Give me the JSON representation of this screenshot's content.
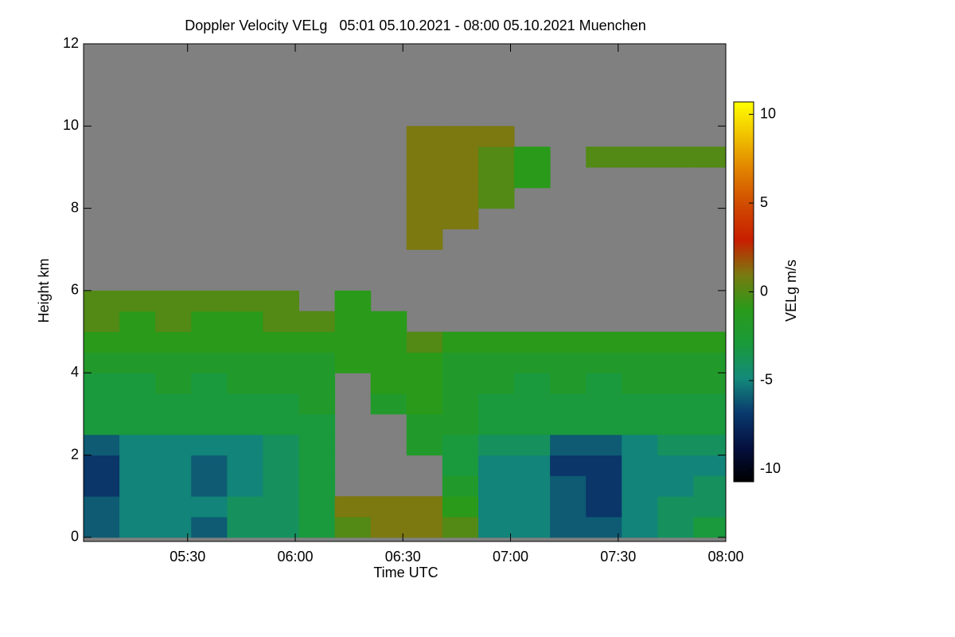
{
  "chart_data": {
    "type": "heatmap",
    "title": "Doppler Velocity VELg   05:01 05.10.2021 - 08:00 05.10.2021 Muenchen",
    "x_label": "Time UTC",
    "y_label": "Height km",
    "colorbar_label": "VELg m/s",
    "xlim": [
      301,
      480
    ],
    "xticks": [
      {
        "value": 330,
        "label": "05:30"
      },
      {
        "value": 360,
        "label": "06:00"
      },
      {
        "value": 390,
        "label": "06:30"
      },
      {
        "value": 420,
        "label": "07:00"
      },
      {
        "value": 450,
        "label": "07:30"
      },
      {
        "value": 480,
        "label": "08:00"
      }
    ],
    "ylim": [
      -0.1,
      12
    ],
    "yticks": [
      0,
      2,
      4,
      6,
      8,
      10,
      12
    ],
    "clim": [
      -10.7,
      10.7
    ],
    "cticks": [
      -10,
      -5,
      0,
      5,
      10
    ],
    "colorscale": [
      "#000000",
      "#051040",
      "#0a3a6e",
      "#138a7a",
      "#1a9a3a",
      "#2a9a1a",
      "#7a7a10",
      "#c81e00",
      "#d04a00",
      "#e08000",
      "#f0c000",
      "#ffff00"
    ],
    "missing_color": "#808080",
    "x": [
      306,
      316,
      326,
      336,
      346,
      356,
      366,
      376,
      386,
      396,
      406,
      416,
      426,
      436,
      446,
      456,
      466,
      476
    ],
    "y": [
      0.25,
      0.75,
      1.25,
      1.75,
      2.25,
      2.75,
      3.25,
      3.75,
      4.25,
      4.75,
      5.25,
      5.75,
      6.25,
      6.75,
      7.25,
      7.75,
      8.25,
      8.75,
      9.25,
      9.75,
      10.25,
      10.75,
      11.25,
      11.75
    ],
    "values": [
      [
        -6,
        -5,
        -5,
        -6,
        -4,
        -4,
        -3,
        0,
        1,
        1,
        0,
        -5,
        -5,
        -6,
        -6,
        -5,
        -4,
        -3
      ],
      [
        -6,
        -5,
        -5,
        -5,
        -4,
        -4,
        -3,
        1,
        1,
        1,
        -1,
        -5,
        -5,
        -6,
        -7,
        -5,
        -4,
        -4
      ],
      [
        -7,
        -5,
        -5,
        -6,
        -5,
        -4,
        -3,
        null,
        null,
        null,
        -2,
        -5,
        -5,
        -6,
        -7,
        -5,
        -5,
        -4
      ],
      [
        -7,
        -5,
        -5,
        -6,
        -5,
        -4,
        -3,
        null,
        null,
        null,
        -3,
        -5,
        -5,
        -7,
        -7,
        -5,
        -5,
        -5
      ],
      [
        -6,
        -5,
        -5,
        -5,
        -5,
        -4,
        -3,
        null,
        null,
        -2,
        -3,
        -4,
        -4,
        -6,
        -6,
        -5,
        -4,
        -4
      ],
      [
        -3,
        -3,
        -3,
        -3,
        -3,
        -3,
        -3,
        null,
        null,
        -2,
        -2,
        -3,
        -3,
        -3,
        -3,
        -3,
        -3,
        -3
      ],
      [
        -3,
        -3,
        -3,
        -3,
        -3,
        -3,
        -2,
        null,
        -2,
        -1,
        -2,
        -3,
        -3,
        -3,
        -3,
        -3,
        -3,
        -3
      ],
      [
        -3,
        -3,
        -2,
        -3,
        -2,
        -2,
        -2,
        null,
        -1,
        -1,
        -2,
        -2,
        -3,
        -2,
        -3,
        -2,
        -2,
        -2
      ],
      [
        -2,
        -2,
        -2,
        -2,
        -2,
        -2,
        -2,
        -1,
        -1,
        -1,
        -2,
        -2,
        -2,
        -2,
        -2,
        -2,
        -2,
        -2
      ],
      [
        -1,
        -1,
        -1,
        -1,
        -1,
        -1,
        -1,
        -1,
        -1,
        0,
        -1,
        -1,
        -1,
        -1,
        -1,
        -1,
        -1,
        -1
      ],
      [
        0,
        -1,
        0,
        -1,
        -1,
        0,
        0,
        -1,
        -1,
        null,
        null,
        null,
        null,
        null,
        null,
        null,
        null,
        null
      ],
      [
        0,
        0,
        0,
        0,
        0,
        0,
        null,
        -1,
        null,
        null,
        null,
        null,
        null,
        null,
        null,
        null,
        null,
        null
      ],
      [
        null,
        null,
        null,
        null,
        null,
        null,
        null,
        null,
        null,
        null,
        null,
        null,
        null,
        null,
        null,
        null,
        null,
        null
      ],
      [
        null,
        null,
        null,
        null,
        null,
        null,
        null,
        null,
        null,
        null,
        null,
        null,
        null,
        null,
        null,
        null,
        null,
        null
      ],
      [
        null,
        null,
        null,
        null,
        null,
        null,
        null,
        null,
        null,
        1,
        null,
        null,
        null,
        null,
        null,
        null,
        null,
        null
      ],
      [
        null,
        null,
        null,
        null,
        null,
        null,
        null,
        null,
        null,
        1,
        1,
        null,
        null,
        null,
        null,
        null,
        null,
        null
      ],
      [
        null,
        null,
        null,
        null,
        null,
        null,
        null,
        null,
        null,
        1,
        1,
        0,
        null,
        null,
        null,
        null,
        null,
        null
      ],
      [
        null,
        null,
        null,
        null,
        null,
        null,
        null,
        null,
        null,
        1,
        1,
        0,
        -1,
        null,
        null,
        null,
        null,
        null
      ],
      [
        null,
        null,
        null,
        null,
        null,
        null,
        null,
        null,
        null,
        1,
        1,
        0,
        -1,
        null,
        0,
        0,
        0,
        0
      ],
      [
        null,
        null,
        null,
        null,
        null,
        null,
        null,
        null,
        null,
        1,
        1,
        1,
        null,
        null,
        null,
        null,
        null,
        null
      ],
      [
        null,
        null,
        null,
        null,
        null,
        null,
        null,
        null,
        null,
        null,
        null,
        null,
        null,
        null,
        null,
        null,
        null,
        null
      ],
      [
        null,
        null,
        null,
        null,
        null,
        null,
        null,
        null,
        null,
        null,
        null,
        null,
        null,
        null,
        null,
        null,
        null,
        null
      ],
      [
        null,
        null,
        null,
        null,
        null,
        null,
        null,
        null,
        null,
        null,
        null,
        null,
        null,
        null,
        null,
        null,
        null,
        null
      ],
      [
        null,
        null,
        null,
        null,
        null,
        null,
        null,
        null,
        null,
        null,
        null,
        null,
        null,
        null,
        null,
        null,
        null,
        null
      ]
    ]
  }
}
